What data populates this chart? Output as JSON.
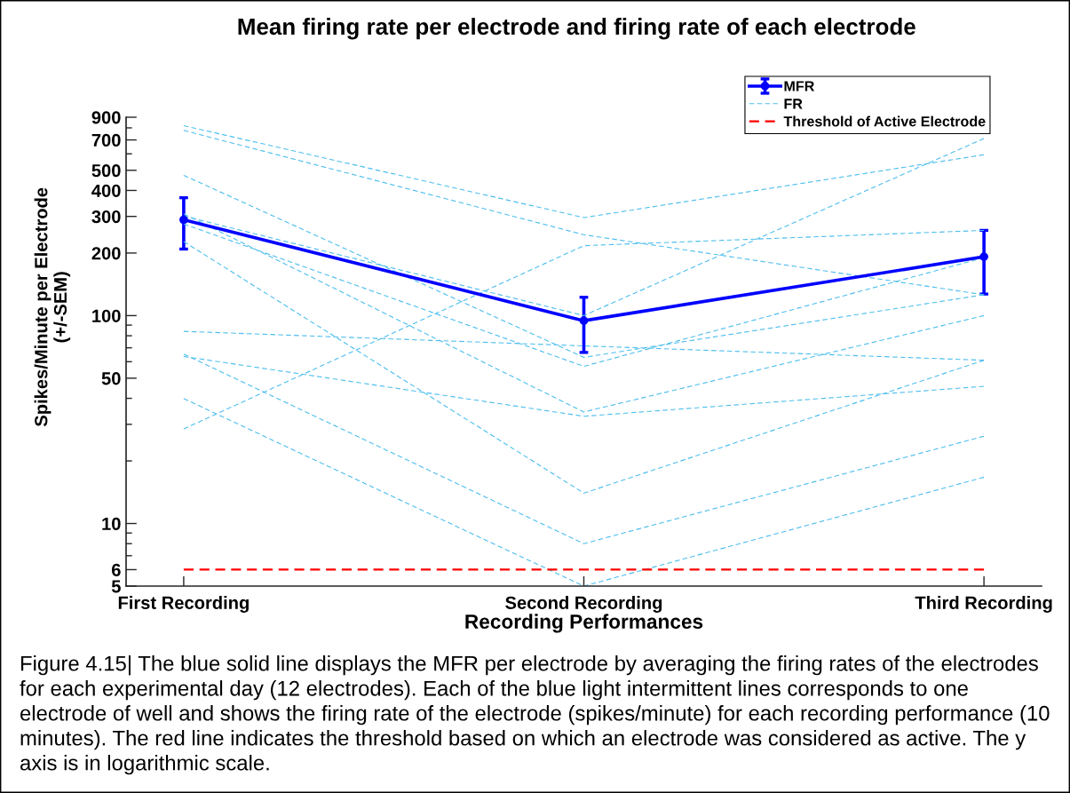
{
  "chart_data": {
    "type": "line",
    "title": "Mean firing rate per electrode and firing rate of each electrode",
    "xlabel": "Recording Performances",
    "ylabel": "Spikes/Minute per Electrode\n(+/-SEM)",
    "categories": [
      "First Recording",
      "Second Recording",
      "Third Recording"
    ],
    "series": [
      {
        "name": "MFR",
        "color": "#0000ff",
        "values": [
          289,
          94.5,
          192
        ],
        "errors": [
          80,
          28,
          65
        ],
        "marker": "circle",
        "line_style": "solid"
      },
      {
        "name": "FR",
        "color": "#4dbeee",
        "values": [
          820,
          296,
          594
        ],
        "line_style": "dashed"
      },
      {
        "color": "#4dbeee",
        "values": [
          778,
          245,
          126
        ],
        "line_style": "dashed"
      },
      {
        "color": "#4dbeee",
        "values": [
          473,
          63,
          126
        ],
        "line_style": "dashed"
      },
      {
        "color": "#4dbeee",
        "values": [
          301,
          100,
          711
        ],
        "line_style": "dashed"
      },
      {
        "color": "#4dbeee",
        "values": [
          276,
          57,
          190
        ],
        "line_style": "dashed"
      },
      {
        "color": "#4dbeee",
        "values": [
          309,
          34.4,
          100
        ],
        "line_style": "dashed"
      },
      {
        "color": "#4dbeee",
        "values": [
          227,
          14,
          61
        ],
        "line_style": "dashed"
      },
      {
        "color": "#4dbeee",
        "values": [
          84,
          71.5,
          61
        ],
        "line_style": "dashed"
      },
      {
        "color": "#4dbeee",
        "values": [
          63.6,
          32.8,
          45.7
        ],
        "line_style": "dashed"
      },
      {
        "color": "#4dbeee",
        "values": [
          65.3,
          8,
          26.3
        ],
        "line_style": "dashed"
      },
      {
        "color": "#4dbeee",
        "values": [
          39.9,
          5,
          16.7
        ],
        "line_style": "dashed"
      },
      {
        "color": "#4dbeee",
        "values": [
          28.5,
          217,
          257
        ],
        "line_style": "dashed"
      }
    ],
    "ref_lines": [
      {
        "axis": "y",
        "value": 6,
        "label": "Threshold of Active Electrode",
        "color": "#ff0000",
        "line_style": "dashed"
      }
    ],
    "log": "y",
    "ylim": [
      5,
      900
    ],
    "yticks": [
      5,
      6,
      10,
      50,
      100,
      200,
      300,
      400,
      500,
      700,
      900
    ],
    "legend": "top right",
    "grid": false,
    "annotations": [
      "Figure 4.15| The blue solid line displays the MFR per electrode by averaging the firing rates of the electrodes for each experimental day (12 electrodes). Each of the blue light intermittent lines corresponds to one electrode of well and shows the firing rate of the electrode (spikes/minute) for each recording performance (10 minutes). The red line indicates the threshold based on which an electrode was considered as active. The y axis is in logarithmic scale."
    ]
  }
}
